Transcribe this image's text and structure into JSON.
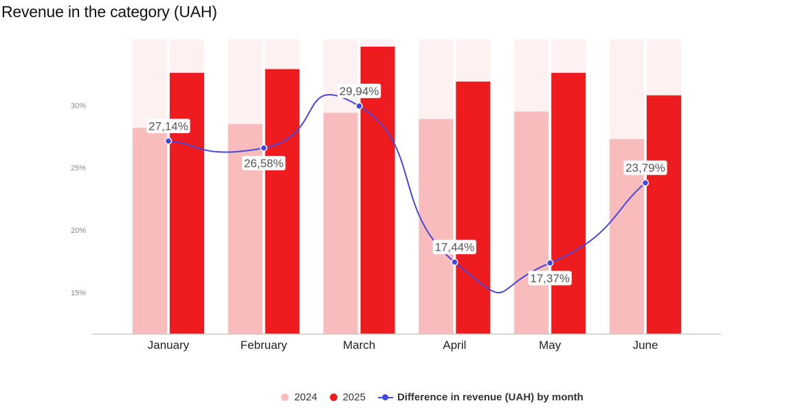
{
  "chart_data": {
    "type": "bar",
    "title": "Revenue in the category (UAH)",
    "categories": [
      "January",
      "February",
      "March",
      "April",
      "May",
      "June"
    ],
    "series": [
      {
        "name": "2024",
        "kind": "bar",
        "color": "#f9bcbc",
        "values": [
          28.2,
          28.5,
          29.4,
          28.9,
          29.5,
          27.3
        ]
      },
      {
        "name": "2025",
        "kind": "bar",
        "color": "#ee1b1f",
        "values": [
          32.6,
          32.9,
          34.7,
          31.9,
          32.6,
          30.8
        ]
      },
      {
        "name": "Difference in revenue (UAH) by month",
        "kind": "line",
        "color": "#4545e0",
        "values": [
          27.14,
          26.58,
          29.94,
          17.44,
          17.37,
          23.79
        ],
        "labels": [
          "27,14%",
          "26,58%",
          "29,94%",
          "17,44%",
          "17,37%",
          "23,79%"
        ]
      }
    ],
    "y_ticks": [
      "15%",
      "20%",
      "25%",
      "30%"
    ],
    "ylim": [
      11.7,
      35.3
    ],
    "background_bar_color": "#fef1f1",
    "grid": false,
    "legend_position": "bottom"
  }
}
